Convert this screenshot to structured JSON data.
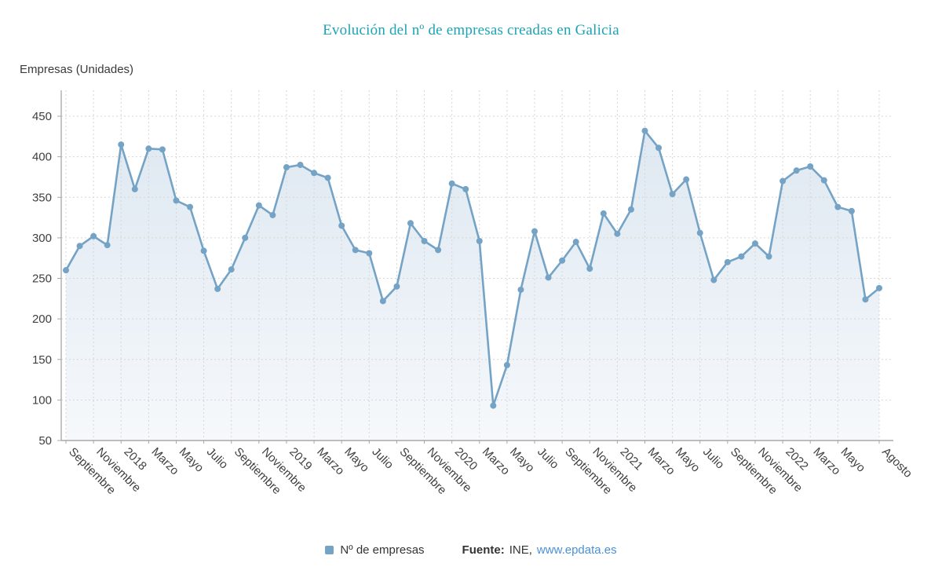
{
  "title": "Evolución del nº de empresas creadas en Galicia",
  "y_axis_unit_label": "Empresas (Unidades)",
  "legend": {
    "series_label": "Nº de empresas"
  },
  "footer": {
    "source_label": "Fuente:",
    "source_value": "INE,",
    "source_link": "www.epdata.es"
  },
  "colors": {
    "title": "#1ba4b5",
    "line": "#74a3c6",
    "marker": "#74a3c6",
    "area_top": "#d7e3ee",
    "area_bottom": "#f5f8fb",
    "grid": "#d6d6d6",
    "axis": "#a8a8a8",
    "text": "#3f3f3f",
    "link": "#4a90d9"
  },
  "chart_data": {
    "type": "area",
    "title": "Evolución del nº de empresas creadas en Galicia",
    "xlabel": "",
    "ylabel": "Empresas (Unidades)",
    "ylim": [
      50,
      450
    ],
    "y_ticks": [
      50,
      100,
      150,
      200,
      250,
      300,
      350,
      400,
      450
    ],
    "grid": true,
    "legend_position": "bottom",
    "x_tick_indices": [
      0,
      2,
      4,
      6,
      8,
      10,
      12,
      14,
      16,
      18,
      20,
      22,
      24,
      26,
      28,
      30,
      32,
      34,
      36,
      38,
      40,
      42,
      44,
      46,
      48,
      50,
      52,
      54,
      56,
      59
    ],
    "x_tick_labels": [
      "Septiembre",
      "Noviembre",
      "2018",
      "Marzo",
      "Mayo",
      "Julio",
      "Septiembre",
      "Noviembre",
      "2019",
      "Marzo",
      "Mayo",
      "Julio",
      "Septiembre",
      "Noviembre",
      "2020",
      "Marzo",
      "Mayo",
      "Julio",
      "Septiembre",
      "Noviembre",
      "2021",
      "Marzo",
      "Mayo",
      "Julio",
      "Septiembre",
      "Noviembre",
      "2022",
      "Marzo",
      "Mayo",
      "Agosto"
    ],
    "series": [
      {
        "name": "Nº de empresas",
        "values": [
          260,
          290,
          302,
          291,
          415,
          360,
          410,
          409,
          346,
          338,
          284,
          237,
          261,
          300,
          340,
          328,
          387,
          390,
          380,
          374,
          315,
          285,
          281,
          222,
          240,
          318,
          296,
          285,
          367,
          360,
          296,
          93,
          143,
          236,
          308,
          251,
          272,
          295,
          262,
          330,
          305,
          335,
          432,
          411,
          354,
          372,
          306,
          248,
          270,
          277,
          293,
          277,
          370,
          383,
          388,
          371,
          338,
          333,
          224,
          238
        ]
      }
    ]
  }
}
